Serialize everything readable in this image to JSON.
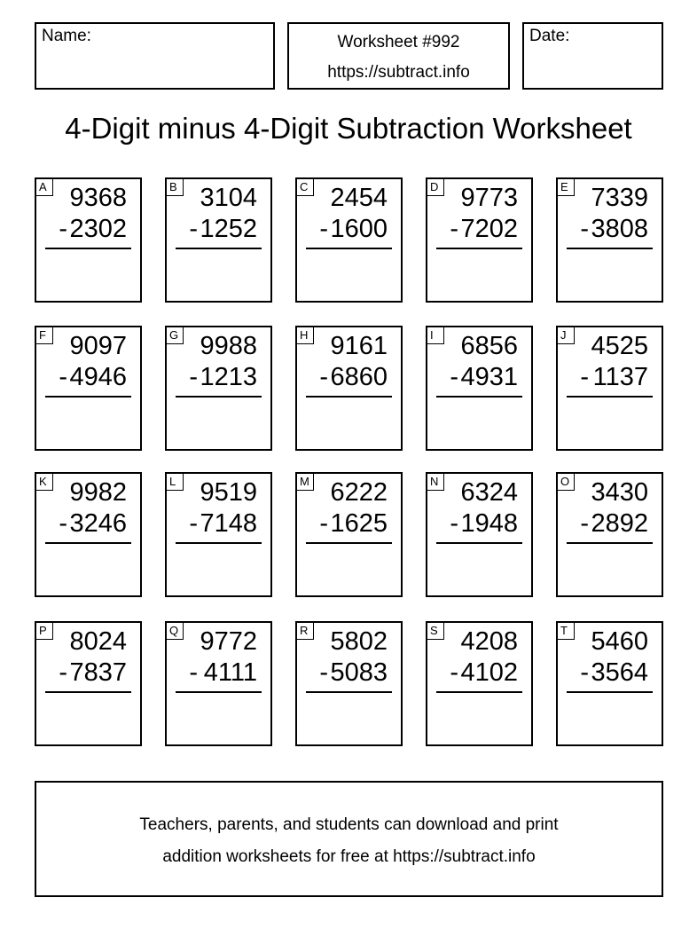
{
  "header": {
    "name_label": "Name:",
    "worksheet_number": "Worksheet #992",
    "worksheet_url": "https://subtract.info",
    "date_label": "Date:"
  },
  "title": "4-Digit minus 4-Digit Subtraction Worksheet",
  "operator": "-",
  "problems": [
    {
      "label": "A",
      "top": "9368",
      "bottom": "2302"
    },
    {
      "label": "B",
      "top": "3104",
      "bottom": "1252"
    },
    {
      "label": "C",
      "top": "2454",
      "bottom": "1600"
    },
    {
      "label": "D",
      "top": "9773",
      "bottom": "7202"
    },
    {
      "label": "E",
      "top": "7339",
      "bottom": "3808"
    },
    {
      "label": "F",
      "top": "9097",
      "bottom": "4946"
    },
    {
      "label": "G",
      "top": "9988",
      "bottom": "1213"
    },
    {
      "label": "H",
      "top": "9161",
      "bottom": "6860"
    },
    {
      "label": "I",
      "top": "6856",
      "bottom": "4931"
    },
    {
      "label": "J",
      "top": "4525",
      "bottom": "1137"
    },
    {
      "label": "K",
      "top": "9982",
      "bottom": "3246"
    },
    {
      "label": "L",
      "top": "9519",
      "bottom": "7148"
    },
    {
      "label": "M",
      "top": "6222",
      "bottom": "1625"
    },
    {
      "label": "N",
      "top": "6324",
      "bottom": "1948"
    },
    {
      "label": "O",
      "top": "3430",
      "bottom": "2892"
    },
    {
      "label": "P",
      "top": "8024",
      "bottom": "7837"
    },
    {
      "label": "Q",
      "top": "9772",
      "bottom": "4111"
    },
    {
      "label": "R",
      "top": "5802",
      "bottom": "5083"
    },
    {
      "label": "S",
      "top": "4208",
      "bottom": "4102"
    },
    {
      "label": "T",
      "top": "5460",
      "bottom": "3564"
    }
  ],
  "footer": {
    "line1": "Teachers, parents, and students can download and print",
    "line2": "addition worksheets for free at https://subtract.info"
  }
}
